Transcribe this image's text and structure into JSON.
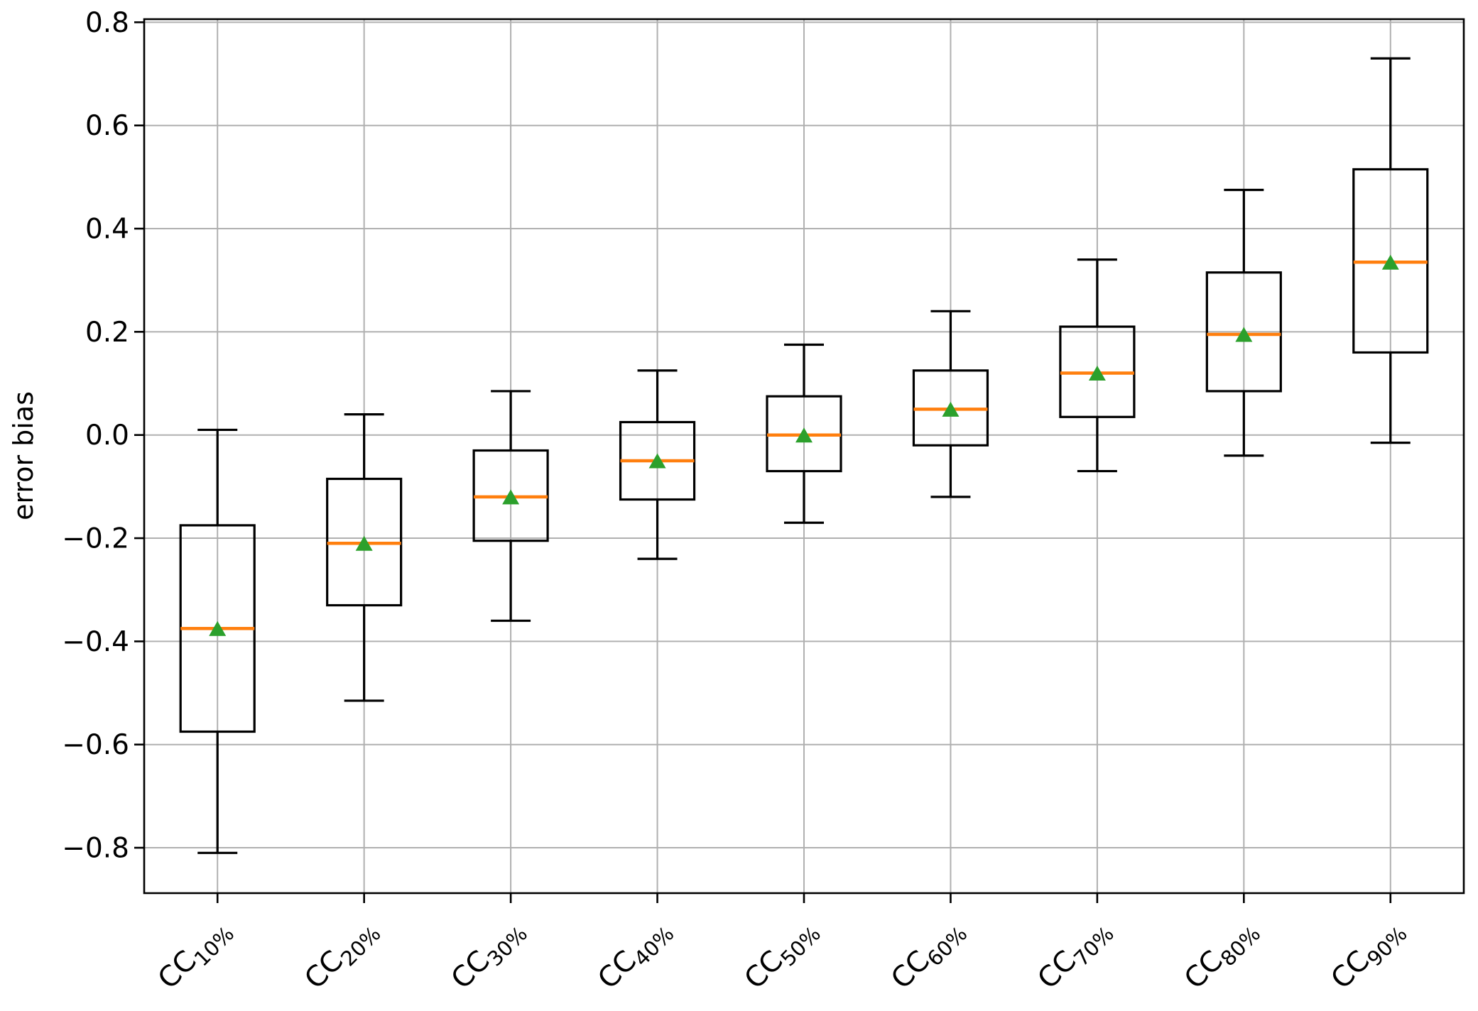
{
  "chart_data": {
    "type": "box",
    "title": "",
    "xlabel": "",
    "ylabel": "error bias",
    "grid": true,
    "legend": "none",
    "ylim": [
      -0.888,
      0.806
    ],
    "y_axis": {
      "ticks": [
        {
          "v": 0.8,
          "label": "0.8"
        },
        {
          "v": 0.6,
          "label": "0.6"
        },
        {
          "v": 0.4,
          "label": "0.4"
        },
        {
          "v": 0.2,
          "label": "0.2"
        },
        {
          "v": 0.0,
          "label": "0.0"
        },
        {
          "v": -0.2,
          "label": "−0.2"
        },
        {
          "v": -0.4,
          "label": "−0.4"
        },
        {
          "v": -0.6,
          "label": "−0.6"
        },
        {
          "v": -0.8,
          "label": "−0.8"
        }
      ]
    },
    "x_tick_rotation": 45,
    "categories": [
      {
        "base": "CC",
        "sub": "10%"
      },
      {
        "base": "CC",
        "sub": "20%"
      },
      {
        "base": "CC",
        "sub": "30%"
      },
      {
        "base": "CC",
        "sub": "40%"
      },
      {
        "base": "CC",
        "sub": "50%"
      },
      {
        "base": "CC",
        "sub": "60%"
      },
      {
        "base": "CC",
        "sub": "70%"
      },
      {
        "base": "CC",
        "sub": "80%"
      },
      {
        "base": "CC",
        "sub": "90%"
      }
    ],
    "boxes": [
      {
        "category": "CC10%",
        "whislo": -0.81,
        "q1": -0.575,
        "med": -0.375,
        "q3": -0.175,
        "whishi": 0.01,
        "mean": -0.375
      },
      {
        "category": "CC20%",
        "whislo": -0.515,
        "q1": -0.33,
        "med": -0.21,
        "q3": -0.085,
        "whishi": 0.04,
        "mean": -0.21
      },
      {
        "category": "CC30%",
        "whislo": -0.36,
        "q1": -0.205,
        "med": -0.12,
        "q3": -0.03,
        "whishi": 0.085,
        "mean": -0.12
      },
      {
        "category": "CC40%",
        "whislo": -0.24,
        "q1": -0.125,
        "med": -0.05,
        "q3": 0.025,
        "whishi": 0.125,
        "mean": -0.05
      },
      {
        "category": "CC50%",
        "whislo": -0.17,
        "q1": -0.07,
        "med": 0.0,
        "q3": 0.075,
        "whishi": 0.175,
        "mean": 0.0
      },
      {
        "category": "CC60%",
        "whislo": -0.12,
        "q1": -0.02,
        "med": 0.05,
        "q3": 0.125,
        "whishi": 0.24,
        "mean": 0.05
      },
      {
        "category": "CC70%",
        "whislo": -0.07,
        "q1": 0.035,
        "med": 0.12,
        "q3": 0.21,
        "whishi": 0.34,
        "mean": 0.12
      },
      {
        "category": "CC80%",
        "whislo": -0.04,
        "q1": 0.085,
        "med": 0.195,
        "q3": 0.315,
        "whishi": 0.475,
        "mean": 0.195
      },
      {
        "category": "CC90%",
        "whislo": -0.015,
        "q1": 0.16,
        "med": 0.335,
        "q3": 0.515,
        "whishi": 0.73,
        "mean": 0.335
      }
    ],
    "colors": {
      "median": "#ff7f0e",
      "mean_marker": "#2ca02c",
      "box_line": "#000000",
      "grid": "#b0b0b0",
      "background": "#ffffff"
    }
  }
}
